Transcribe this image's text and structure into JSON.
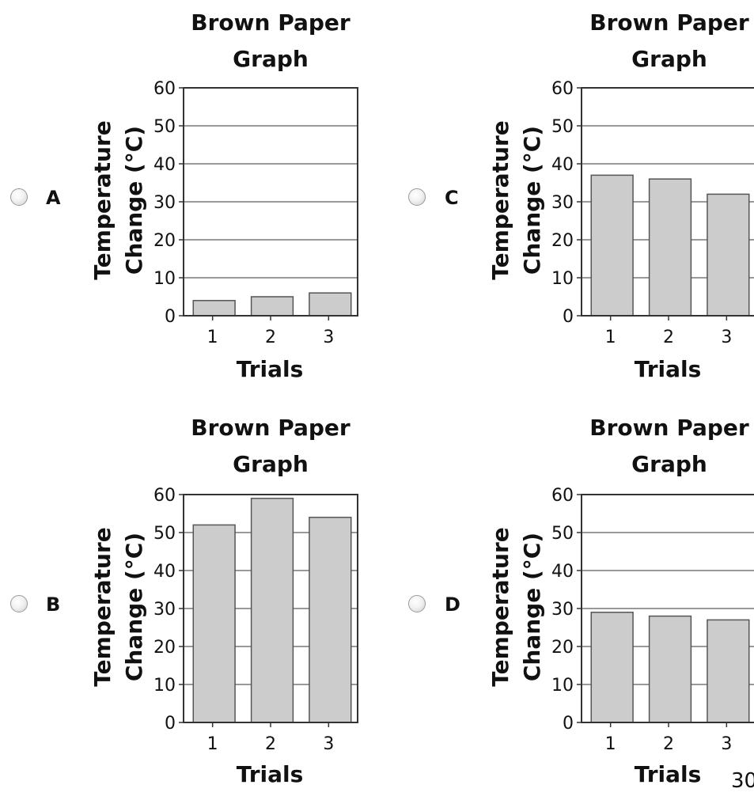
{
  "options": [
    {
      "letter": "A",
      "title_line1": "Brown Paper",
      "title_line2": "Graph",
      "ylabel_line1": "Temperature",
      "ylabel_line2": "Change (°C)",
      "xlabel": "Trials"
    },
    {
      "letter": "C",
      "title_line1": "Brown Paper",
      "title_line2": "Graph",
      "ylabel_line1": "Temperature",
      "ylabel_line2": "Change (°C)",
      "xlabel": "Trials"
    },
    {
      "letter": "B",
      "title_line1": "Brown Paper",
      "title_line2": "Graph",
      "ylabel_line1": "Temperature",
      "ylabel_line2": "Change (°C)",
      "xlabel": "Trials"
    },
    {
      "letter": "D",
      "title_line1": "Brown Paper",
      "title_line2": "Graph",
      "ylabel_line1": "Temperature",
      "ylabel_line2": "Change (°C)",
      "xlabel": "Trials"
    }
  ],
  "page_number": "30",
  "colors": {
    "bar_fill": "#cccccc",
    "bar_stroke": "#555555",
    "grid": "#333333"
  },
  "chart_data": [
    {
      "type": "bar",
      "title": "Brown Paper Graph",
      "xlabel": "Trials",
      "ylabel": "Temperature Change (°C)",
      "categories": [
        "1",
        "2",
        "3"
      ],
      "values": [
        4,
        5,
        6
      ],
      "ylim": [
        0,
        60
      ],
      "yticks": [
        0,
        10,
        20,
        30,
        40,
        50,
        60
      ],
      "grid": true
    },
    {
      "type": "bar",
      "title": "Brown Paper Graph",
      "xlabel": "Trials",
      "ylabel": "Temperature Change (°C)",
      "categories": [
        "1",
        "2",
        "3"
      ],
      "values": [
        37,
        36,
        32
      ],
      "ylim": [
        0,
        60
      ],
      "yticks": [
        0,
        10,
        20,
        30,
        40,
        50,
        60
      ],
      "grid": true
    },
    {
      "type": "bar",
      "title": "Brown Paper Graph",
      "xlabel": "Trials",
      "ylabel": "Temperature Change (°C)",
      "categories": [
        "1",
        "2",
        "3"
      ],
      "values": [
        52,
        59,
        54
      ],
      "ylim": [
        0,
        60
      ],
      "yticks": [
        0,
        10,
        20,
        30,
        40,
        50,
        60
      ],
      "grid": true
    },
    {
      "type": "bar",
      "title": "Brown Paper Graph",
      "xlabel": "Trials",
      "ylabel": "Temperature Change (°C)",
      "categories": [
        "1",
        "2",
        "3"
      ],
      "values": [
        29,
        28,
        27
      ],
      "ylim": [
        0,
        60
      ],
      "yticks": [
        0,
        10,
        20,
        30,
        40,
        50,
        60
      ],
      "grid": true
    }
  ]
}
